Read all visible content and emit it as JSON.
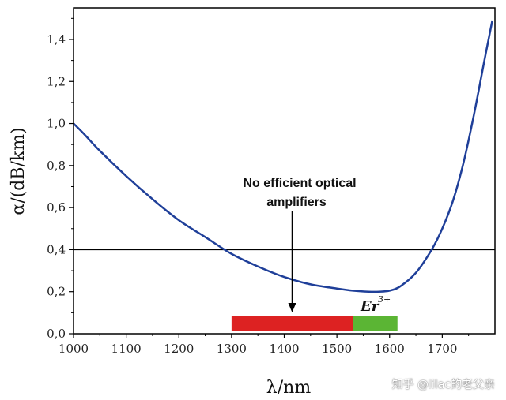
{
  "chart_data": {
    "type": "line",
    "title": "",
    "xlabel": "λ/nm",
    "ylabel": "α/(dB/km)",
    "xlim": [
      1000,
      1800
    ],
    "ylim": [
      0,
      1.55
    ],
    "x_ticks": [
      1000,
      1100,
      1200,
      1300,
      1400,
      1500,
      1600,
      1700
    ],
    "y_ticks": [
      0.0,
      0.2,
      0.4,
      0.6,
      0.8,
      1.0,
      1.2,
      1.4
    ],
    "y_tick_labels": [
      "0,0",
      "0,2",
      "0,4",
      "0,6",
      "0,8",
      "1,0",
      "1,2",
      "1,4"
    ],
    "series": [
      {
        "name": "attenuation",
        "color": "#1f3f99",
        "x": [
          1000,
          1020,
          1050,
          1100,
          1150,
          1200,
          1250,
          1300,
          1350,
          1400,
          1450,
          1500,
          1530,
          1560,
          1580,
          1600,
          1620,
          1650,
          1680,
          1700,
          1720,
          1740,
          1760,
          1780,
          1795
        ],
        "y": [
          1.0,
          0.95,
          0.87,
          0.75,
          0.64,
          0.54,
          0.46,
          0.38,
          0.32,
          0.27,
          0.235,
          0.215,
          0.205,
          0.2,
          0.2,
          0.205,
          0.225,
          0.29,
          0.4,
          0.5,
          0.63,
          0.81,
          1.04,
          1.3,
          1.49
        ]
      }
    ],
    "reference_line": {
      "y": 0.4,
      "color": "#000000"
    },
    "bands": [
      {
        "name": "no-amplifier-band",
        "x_start": 1300,
        "x_end": 1530,
        "color": "#dd2222"
      },
      {
        "name": "er-band",
        "x_start": 1530,
        "x_end": 1615,
        "color": "#5bb534"
      }
    ],
    "annotations": {
      "no_amp_line1": "No efficient optical",
      "no_amp_line2": "amplifiers",
      "arrow_x": 1415,
      "er_label": "Er",
      "er_sup": "3+"
    }
  },
  "watermark": "知乎 @lilac的老父亲"
}
